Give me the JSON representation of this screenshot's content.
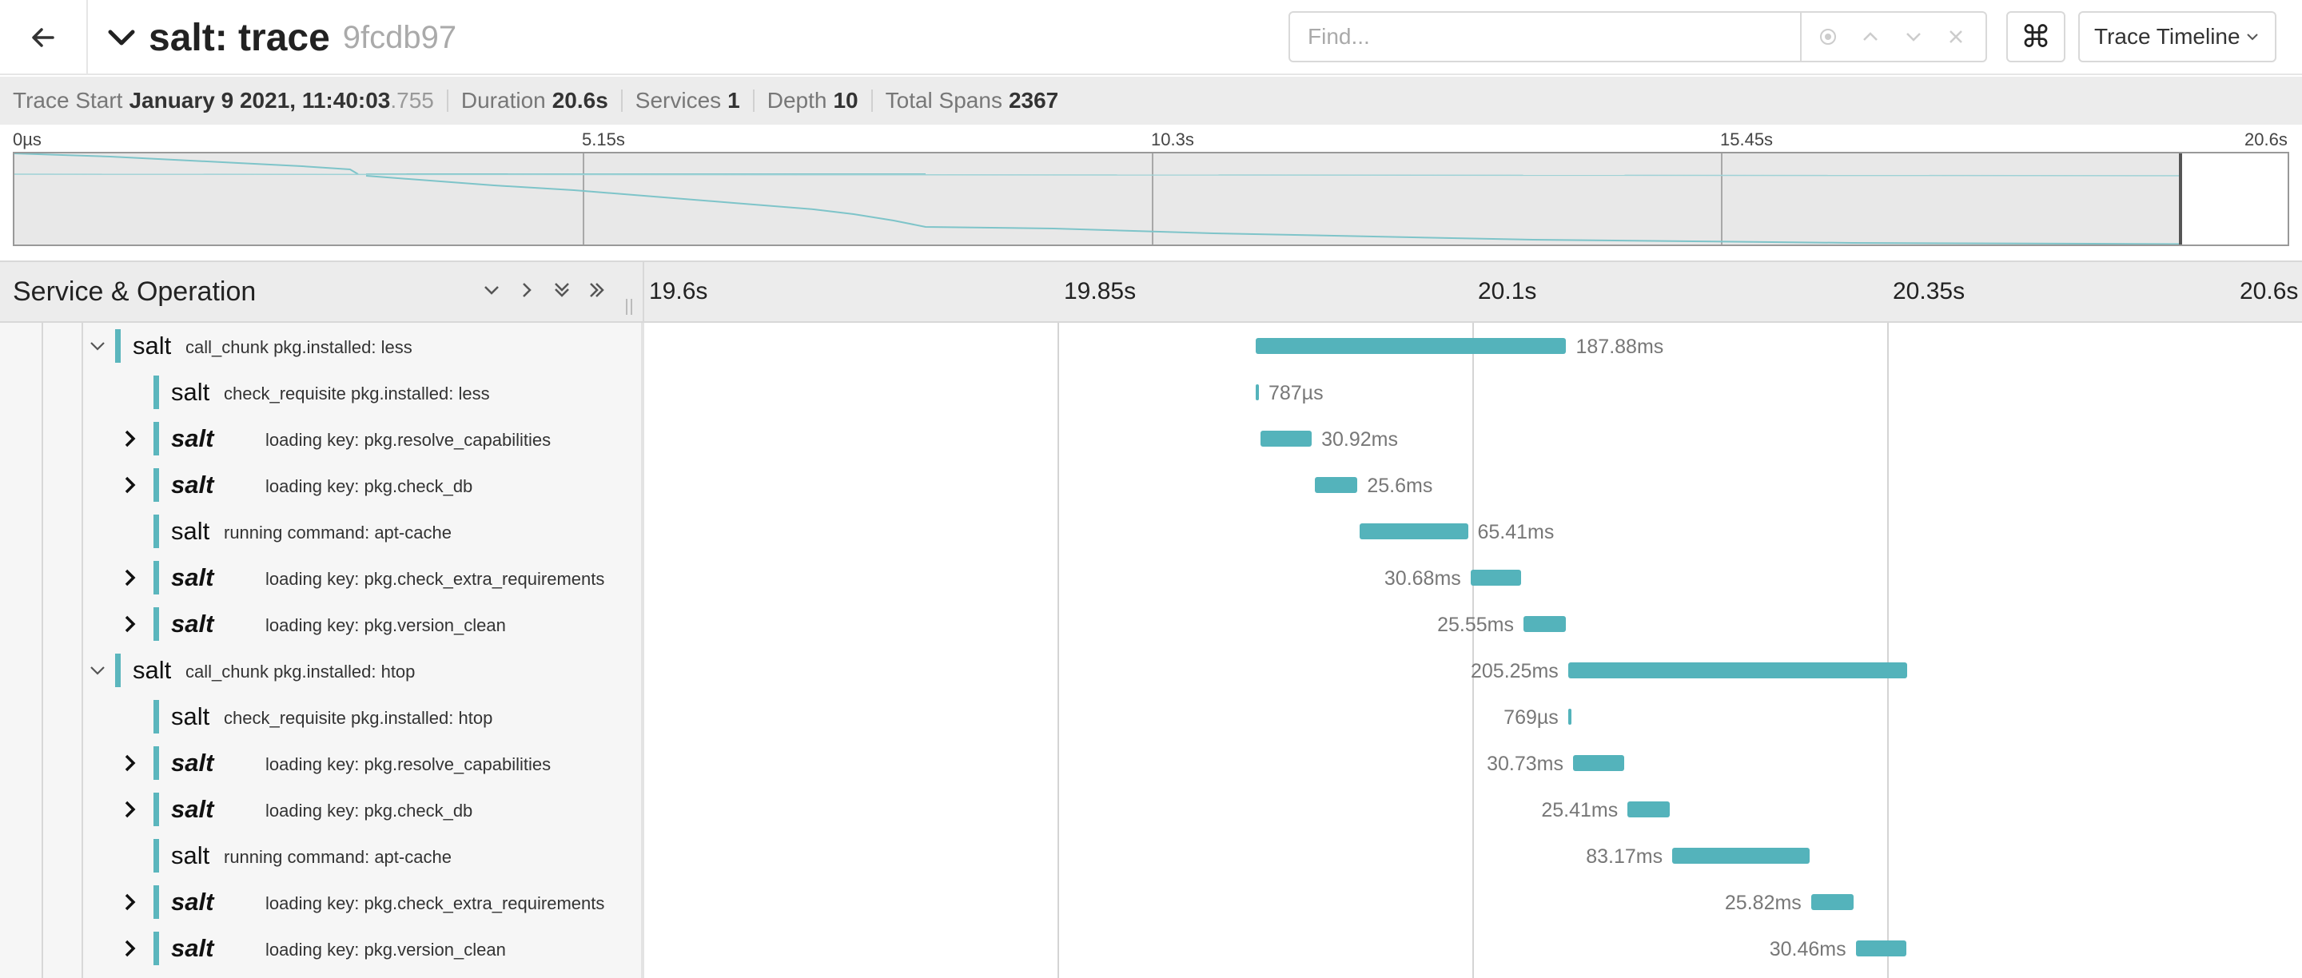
{
  "header": {
    "title": "salt: trace",
    "trace_id": "9fcdb97",
    "find_placeholder": "Find...",
    "view_label": "Trace Timeline",
    "kbd_icon": "⌘"
  },
  "trace_info": {
    "start_label": "Trace Start",
    "start_value": "January 9 2021, 11:40:03",
    "start_ms": ".755",
    "duration_label": "Duration",
    "duration_value": "20.6s",
    "services_label": "Services",
    "services_value": "1",
    "depth_label": "Depth",
    "depth_value": "10",
    "spans_label": "Total Spans",
    "spans_value": "2367"
  },
  "minimap": {
    "ticks": [
      "0µs",
      "5.15s",
      "10.3s",
      "15.45s",
      "20.6s"
    ],
    "view_window": {
      "start_fraction": 0.951,
      "end_fraction": 1.0
    }
  },
  "timeline": {
    "header_title": "Service & Operation",
    "ticks": [
      "19.6s",
      "19.85s",
      "20.1s",
      "20.35s",
      "20.6s"
    ],
    "range_start_s": 19.6,
    "range_end_s": 20.6
  },
  "spans": [
    {
      "depth": 0,
      "toggle": "expanded",
      "service": "salt",
      "bold": false,
      "operation": "call_chunk pkg.installed: less",
      "start_s": 19.967,
      "duration_ms": 187.88,
      "duration_label": "187.88ms",
      "label_side": "right"
    },
    {
      "depth": 1,
      "toggle": "none",
      "service": "salt",
      "bold": false,
      "operation": "check_requisite pkg.installed: less",
      "start_s": 19.967,
      "duration_ms": 0.787,
      "duration_label": "787µs",
      "label_side": "right"
    },
    {
      "depth": 1,
      "toggle": "collapsed",
      "service": "salt",
      "bold": true,
      "operation": "loading key: pkg.resolve_capabilities",
      "start_s": 19.97,
      "duration_ms": 30.92,
      "duration_label": "30.92ms",
      "label_side": "right"
    },
    {
      "depth": 1,
      "toggle": "collapsed",
      "service": "salt",
      "bold": true,
      "operation": "loading key: pkg.check_db",
      "start_s": 20.003,
      "duration_ms": 25.6,
      "duration_label": "25.6ms",
      "label_side": "right"
    },
    {
      "depth": 1,
      "toggle": "none",
      "service": "salt",
      "bold": false,
      "operation": "running command: apt-cache",
      "start_s": 20.03,
      "duration_ms": 65.41,
      "duration_label": "65.41ms",
      "label_side": "right"
    },
    {
      "depth": 1,
      "toggle": "collapsed",
      "service": "salt",
      "bold": true,
      "operation": "loading key: pkg.check_extra_requirements",
      "start_s": 20.097,
      "duration_ms": 30.68,
      "duration_label": "30.68ms",
      "label_side": "left"
    },
    {
      "depth": 1,
      "toggle": "collapsed",
      "service": "salt",
      "bold": true,
      "operation": "loading key: pkg.version_clean",
      "start_s": 20.129,
      "duration_ms": 25.55,
      "duration_label": "25.55ms",
      "label_side": "left"
    },
    {
      "depth": 0,
      "toggle": "expanded",
      "service": "salt",
      "bold": false,
      "operation": "call_chunk pkg.installed: htop",
      "start_s": 20.156,
      "duration_ms": 205.25,
      "duration_label": "205.25ms",
      "label_side": "left"
    },
    {
      "depth": 1,
      "toggle": "none",
      "service": "salt",
      "bold": false,
      "operation": "check_requisite pkg.installed: htop",
      "start_s": 20.156,
      "duration_ms": 0.769,
      "duration_label": "769µs",
      "label_side": "left"
    },
    {
      "depth": 1,
      "toggle": "collapsed",
      "service": "salt",
      "bold": true,
      "operation": "loading key: pkg.resolve_capabilities",
      "start_s": 20.159,
      "duration_ms": 30.73,
      "duration_label": "30.73ms",
      "label_side": "left"
    },
    {
      "depth": 1,
      "toggle": "collapsed",
      "service": "salt",
      "bold": true,
      "operation": "loading key: pkg.check_db",
      "start_s": 20.192,
      "duration_ms": 25.41,
      "duration_label": "25.41ms",
      "label_side": "left"
    },
    {
      "depth": 1,
      "toggle": "none",
      "service": "salt",
      "bold": false,
      "operation": "running command: apt-cache",
      "start_s": 20.219,
      "duration_ms": 83.17,
      "duration_label": "83.17ms",
      "label_side": "left"
    },
    {
      "depth": 1,
      "toggle": "collapsed",
      "service": "salt",
      "bold": true,
      "operation": "loading key: pkg.check_extra_requirements",
      "start_s": 20.303,
      "duration_ms": 25.82,
      "duration_label": "25.82ms",
      "label_side": "left"
    },
    {
      "depth": 1,
      "toggle": "collapsed",
      "service": "salt",
      "bold": true,
      "operation": "loading key: pkg.version_clean",
      "start_s": 20.33,
      "duration_ms": 30.46,
      "duration_label": "30.46ms",
      "label_side": "left"
    }
  ],
  "colors": {
    "span_bar": "#54b3bb",
    "service_marker": "#5bb6bd",
    "minimap_line": "#7ec4c9"
  },
  "icons": {
    "back": "arrow-left-icon",
    "title_toggle": "chevron-down-icon",
    "find_locate": "target-icon",
    "find_prev": "chevron-up-icon",
    "find_next": "chevron-down-icon",
    "find_clear": "close-icon",
    "view_dropdown": "chevron-down-icon"
  }
}
